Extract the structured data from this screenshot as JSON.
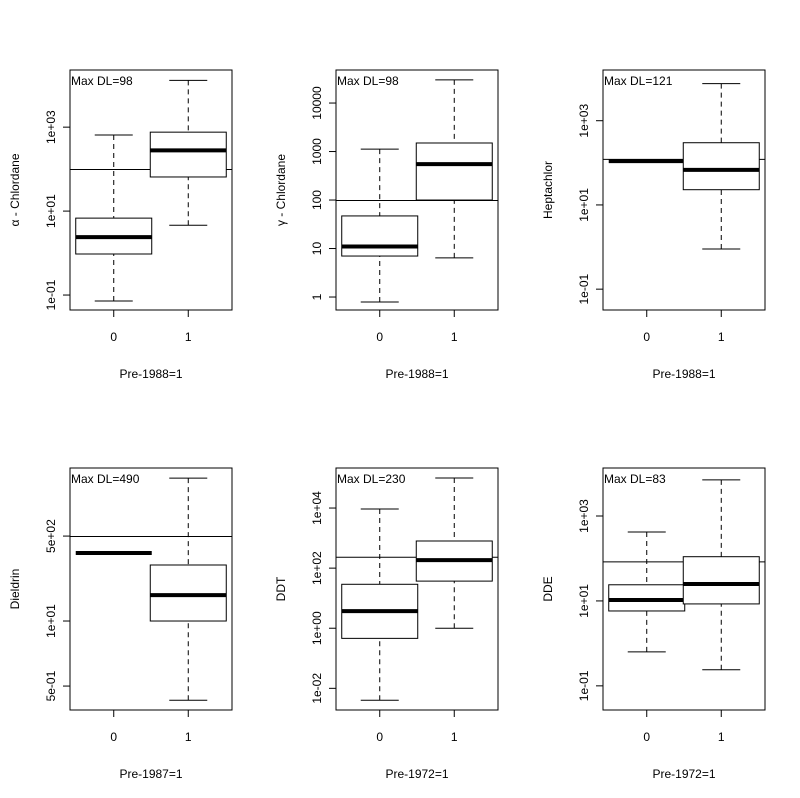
{
  "chart_data": [
    {
      "type": "box",
      "log_y": true,
      "ylabel": "α - Chlordane",
      "xlabel": "Pre-1988=1",
      "annotation": "Max DL=98",
      "hline": 98,
      "categories": [
        "0",
        "1"
      ],
      "boxes": [
        {
          "min": 0.072,
          "q1": 0.95,
          "median": 2.4,
          "q3": 6.8,
          "max": 650
        },
        {
          "min": 4.6,
          "q1": 65,
          "median": 280,
          "q3": 760,
          "max": 13000
        }
      ],
      "ylim": [
        0.044,
        23000
      ],
      "yticks": [
        {
          "value": 0.1,
          "label": "1e-01"
        },
        {
          "value": 10,
          "label": "1e+01"
        },
        {
          "value": 1000,
          "label": "1e+03"
        }
      ]
    },
    {
      "type": "box",
      "log_y": true,
      "ylabel": "γ - Chlordane",
      "xlabel": "Pre-1988=1",
      "annotation": "Max DL=98",
      "hline": 98,
      "categories": [
        "0",
        "1"
      ],
      "boxes": [
        {
          "min": 0.79,
          "q1": 7,
          "median": 11,
          "q3": 47,
          "max": 1120
        },
        {
          "min": 6.4,
          "q1": 100,
          "median": 550,
          "q3": 1500,
          "max": 30000
        }
      ],
      "ylim": [
        0.54,
        48000
      ],
      "yticks": [
        1,
        10,
        100,
        1000,
        10000
      ]
    },
    {
      "type": "box",
      "log_y": true,
      "ylabel": "Heptachlor",
      "xlabel": "Pre-1988=1",
      "annotation": "Max DL=121",
      "hline": 121,
      "categories": [
        "0",
        "1"
      ],
      "boxes": [
        {
          "min": 110,
          "q1": 110,
          "median": 110,
          "q3": 110,
          "max": 110
        },
        {
          "min": 0.9,
          "q1": 23,
          "median": 68,
          "q3": 300,
          "max": 7600
        }
      ],
      "ylim": [
        0.032,
        16000
      ],
      "yticks": [
        {
          "value": 0.1,
          "label": "1e-01"
        },
        {
          "value": 10,
          "label": "1e+01"
        },
        {
          "value": 1000,
          "label": "1e+03"
        }
      ]
    },
    {
      "type": "box",
      "log_y": true,
      "ylabel": "Dieldrin",
      "xlabel": "Pre-1987=1",
      "annotation": "Max DL=490",
      "hline": 490,
      "categories": [
        "0",
        "1"
      ],
      "boxes": [
        {
          "min": 230,
          "q1": 230,
          "median": 230,
          "q3": 230,
          "max": 230
        },
        {
          "min": 0.26,
          "q1": 10,
          "median": 33,
          "q3": 132,
          "max": 7200
        }
      ],
      "ylim": [
        0.166,
        11500
      ],
      "yticks": [
        {
          "value": 0.5,
          "label": "5e-01"
        },
        {
          "value": 10,
          "label": "1e+01"
        },
        {
          "value": 500,
          "label": "5e+02"
        }
      ]
    },
    {
      "type": "box",
      "log_y": true,
      "ylabel": "DDT",
      "xlabel": "Pre-1972=1",
      "annotation": "Max DL=230",
      "hline": 230,
      "categories": [
        "0",
        "1"
      ],
      "boxes": [
        {
          "min": 0.004,
          "q1": 0.46,
          "median": 3.7,
          "q3": 29,
          "max": 9300
        },
        {
          "min": 1,
          "q1": 37,
          "median": 185,
          "q3": 800,
          "max": 100000
        }
      ],
      "ylim": [
        0.0019,
        215000
      ],
      "yticks": [
        {
          "value": 0.01,
          "label": "1e-02"
        },
        {
          "value": 1,
          "label": "1e+00"
        },
        {
          "value": 100,
          "label": "1e+02"
        },
        {
          "value": 10000,
          "label": "1e+04"
        }
      ]
    },
    {
      "type": "box",
      "log_y": true,
      "ylabel": "DDE",
      "xlabel": "Pre-1972=1",
      "annotation": "Max DL=83",
      "hline": 83,
      "categories": [
        "0",
        "1"
      ],
      "boxes": [
        {
          "min": 0.63,
          "q1": 5.8,
          "median": 10.5,
          "q3": 24,
          "max": 420
        },
        {
          "min": 0.24,
          "q1": 8.5,
          "median": 25,
          "q3": 110,
          "max": 7100
        }
      ],
      "ylim": [
        0.027,
        13500
      ],
      "yticks": [
        {
          "value": 0.1,
          "label": "1e-01"
        },
        {
          "value": 10,
          "label": "1e+01"
        },
        {
          "value": 1000,
          "label": "1e+03"
        }
      ]
    }
  ]
}
